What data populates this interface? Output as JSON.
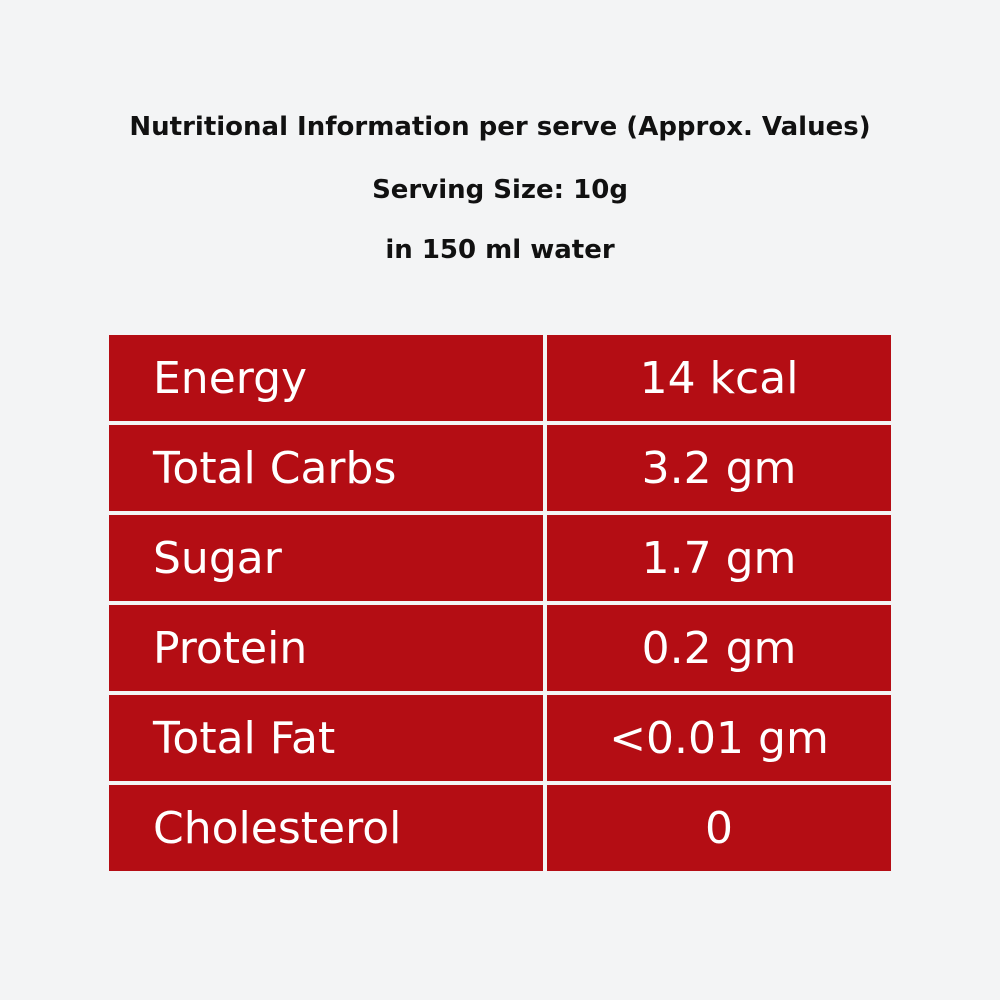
{
  "header": {
    "lines": [
      "Nutritional Information per serve (Approx. Values)",
      "Serving Size: 10g",
      "in 150 ml water"
    ]
  },
  "table": {
    "rows": [
      [
        "Energy",
        "14 kcal"
      ],
      [
        "Total Carbs",
        "3.2 gm"
      ],
      [
        "Sugar",
        "1.7 gm"
      ],
      [
        "Protein",
        "0.2 gm"
      ],
      [
        "Total Fat",
        "<0.01 gm"
      ],
      [
        "Cholesterol",
        "0"
      ]
    ]
  }
}
